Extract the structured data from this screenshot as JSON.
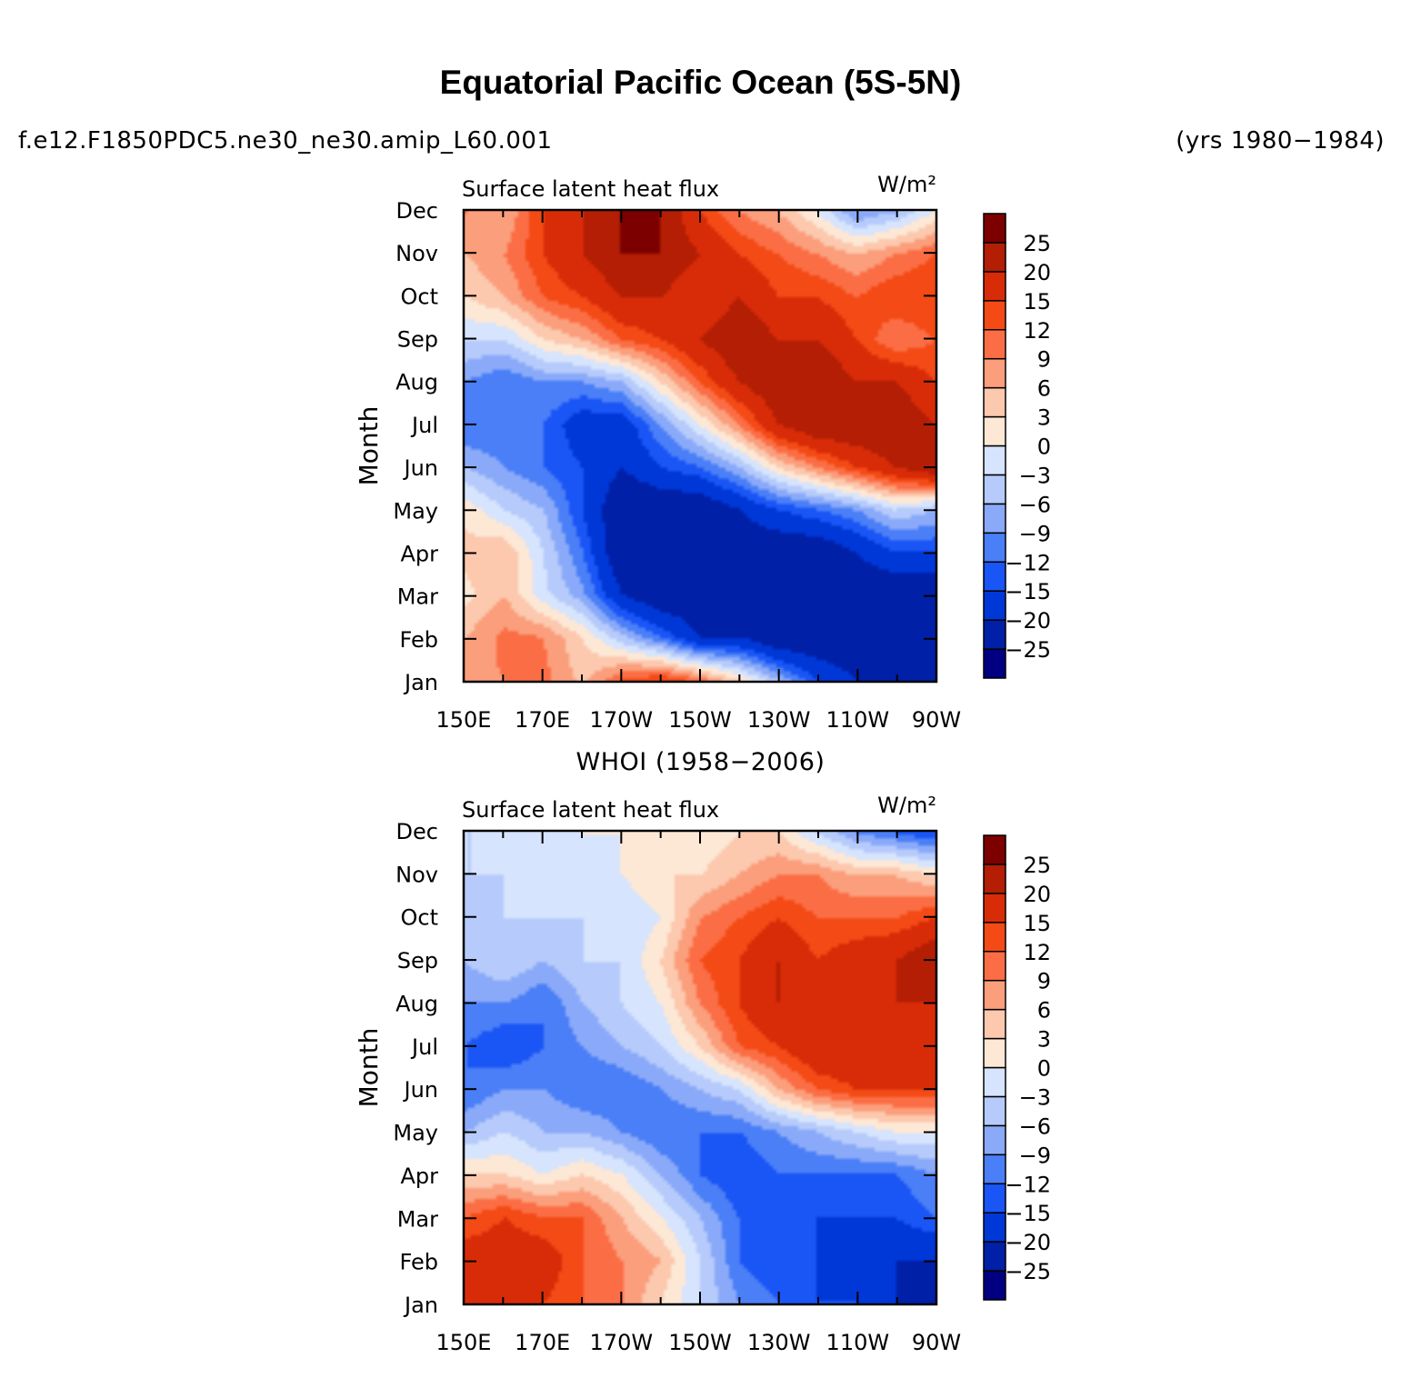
{
  "title": "Equatorial Pacific Ocean (5S-5N)",
  "case_name": "f.e12.F1850PDC5.ne30_ne30.amip_L60.001",
  "years": "(yrs 1980−1984)",
  "panel2_title": "WHOI (1958−2006)",
  "chart_data": [
    {
      "type": "heatmap",
      "title": "Surface latent heat flux",
      "units": "W/m²",
      "ylabel": "Month",
      "xlabel": "",
      "x_ticks": [
        "150E",
        "170E",
        "170W",
        "150W",
        "130W",
        "110W",
        "90W"
      ],
      "y_ticks": [
        "Jan",
        "Feb",
        "Mar",
        "Apr",
        "May",
        "Jun",
        "Jul",
        "Aug",
        "Sep",
        "Oct",
        "Nov",
        "Dec"
      ],
      "x": [
        150,
        160,
        170,
        180,
        190,
        200,
        210,
        220,
        230,
        240,
        250,
        260,
        270
      ],
      "y": [
        "Jan",
        "Feb",
        "Mar",
        "Apr",
        "May",
        "Jun",
        "Jul",
        "Aug",
        "Sep",
        "Oct",
        "Nov",
        "Dec"
      ],
      "values": [
        [
          8,
          9,
          10,
          5,
          12,
          15,
          10,
          3,
          -6,
          -15,
          -20,
          -25,
          -25
        ],
        [
          6,
          10,
          9,
          3,
          -5,
          -12,
          -20,
          -20,
          -25,
          -25,
          -25,
          -25,
          -25
        ],
        [
          2,
          6,
          -2,
          -8,
          -20,
          -25,
          -25,
          -25,
          -25,
          -25,
          -25,
          -25,
          -25
        ],
        [
          4,
          6,
          -3,
          -12,
          -25,
          -25,
          -25,
          -25,
          -25,
          -25,
          -20,
          -15,
          -15
        ],
        [
          2,
          -3,
          -6,
          -15,
          -25,
          -25,
          -25,
          -20,
          -15,
          -12,
          -9,
          -3,
          -6
        ],
        [
          -6,
          -9,
          -12,
          -15,
          -20,
          -15,
          -12,
          -6,
          3,
          9,
          15,
          20,
          25
        ],
        [
          -12,
          -12,
          -12,
          -18,
          -18,
          -9,
          0,
          9,
          20,
          25,
          25,
          25,
          20
        ],
        [
          -9,
          -12,
          -9,
          -9,
          -6,
          3,
          12,
          20,
          25,
          25,
          20,
          20,
          15
        ],
        [
          -3,
          -3,
          3,
          6,
          12,
          15,
          20,
          25,
          20,
          20,
          15,
          9,
          12
        ],
        [
          3,
          6,
          12,
          15,
          20,
          20,
          15,
          20,
          15,
          15,
          12,
          15,
          15
        ],
        [
          6,
          9,
          15,
          20,
          25,
          25,
          20,
          15,
          12,
          9,
          6,
          9,
          12
        ],
        [
          9,
          6,
          15,
          20,
          25,
          25,
          15,
          9,
          6,
          0,
          -9,
          -6,
          0
        ]
      ],
      "levels": [
        -25,
        -20,
        -15,
        -12,
        -9,
        -6,
        -3,
        0,
        3,
        6,
        9,
        12,
        15,
        20,
        25
      ],
      "colors": [
        "#000080",
        "#0020a8",
        "#0038d8",
        "#1a55f5",
        "#4a7ff7",
        "#8aaaf9",
        "#b6cbfb",
        "#d6e4fd",
        "#fde8d6",
        "#fcc8ae",
        "#fb9e7c",
        "#fb6e45",
        "#f44a16",
        "#d82c08",
        "#b31e04",
        "#7d0000"
      ]
    },
    {
      "type": "heatmap",
      "title": "Surface latent heat flux",
      "units": "W/m²",
      "ylabel": "Month",
      "xlabel": "",
      "x_ticks": [
        "150E",
        "170E",
        "170W",
        "150W",
        "130W",
        "110W",
        "90W"
      ],
      "y_ticks": [
        "Jan",
        "Feb",
        "Mar",
        "Apr",
        "May",
        "Jun",
        "Jul",
        "Aug",
        "Sep",
        "Oct",
        "Nov",
        "Dec"
      ],
      "x": [
        150,
        160,
        170,
        180,
        190,
        200,
        210,
        220,
        230,
        240,
        250,
        260,
        270
      ],
      "y": [
        "Jan",
        "Feb",
        "Mar",
        "Apr",
        "May",
        "Jun",
        "Jul",
        "Aug",
        "Sep",
        "Oct",
        "Nov",
        "Dec"
      ],
      "values": [
        [
          15,
          18,
          15,
          12,
          9,
          3,
          -3,
          -9,
          -12,
          -15,
          -15,
          -20,
          -25
        ],
        [
          18,
          18,
          18,
          12,
          9,
          6,
          -3,
          -12,
          -15,
          -15,
          -20,
          -20,
          -20
        ],
        [
          12,
          15,
          12,
          12,
          6,
          0,
          -6,
          -12,
          -15,
          -15,
          -15,
          -15,
          -12
        ],
        [
          3,
          3,
          0,
          3,
          0,
          -6,
          -12,
          -15,
          -12,
          -12,
          -12,
          -12,
          -9
        ],
        [
          -6,
          -3,
          -6,
          -6,
          -9,
          -12,
          -12,
          -12,
          -9,
          -6,
          -3,
          0,
          0
        ],
        [
          -12,
          -9,
          -9,
          -12,
          -12,
          -9,
          -6,
          -3,
          6,
          12,
          15,
          15,
          15
        ],
        [
          -12,
          -15,
          -12,
          -9,
          -6,
          -3,
          3,
          12,
          15,
          20,
          20,
          20,
          18
        ],
        [
          -9,
          -9,
          -12,
          -6,
          -3,
          0,
          9,
          15,
          20,
          15,
          15,
          20,
          20
        ],
        [
          -6,
          -3,
          -6,
          -3,
          -3,
          3,
          12,
          15,
          20,
          15,
          18,
          20,
          25
        ],
        [
          -6,
          -3,
          -3,
          -3,
          -3,
          0,
          9,
          12,
          15,
          12,
          12,
          12,
          15
        ],
        [
          -3,
          -3,
          -3,
          -3,
          0,
          3,
          3,
          6,
          9,
          9,
          6,
          6,
          3
        ],
        [
          -3,
          -3,
          -3,
          0,
          0,
          0,
          0,
          3,
          3,
          -3,
          -9,
          -12,
          -15
        ]
      ],
      "levels": [
        -25,
        -20,
        -15,
        -12,
        -9,
        -6,
        -3,
        0,
        3,
        6,
        9,
        12,
        15,
        20,
        25
      ],
      "colors": [
        "#000080",
        "#0020a8",
        "#0038d8",
        "#1a55f5",
        "#4a7ff7",
        "#8aaaf9",
        "#b6cbfb",
        "#d6e4fd",
        "#fde8d6",
        "#fcc8ae",
        "#fb9e7c",
        "#fb6e45",
        "#f44a16",
        "#d82c08",
        "#b31e04",
        "#7d0000"
      ]
    }
  ]
}
